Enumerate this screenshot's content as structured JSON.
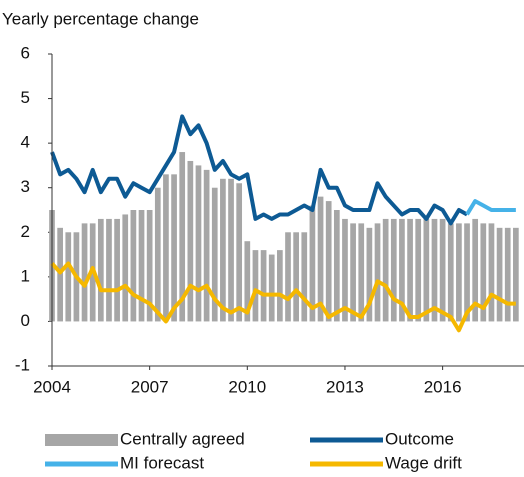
{
  "chart_data": {
    "type": "combo",
    "title": "Yearly percentage change",
    "x": [
      2004,
      2004.25,
      2004.5,
      2004.75,
      2005,
      2005.25,
      2005.5,
      2005.75,
      2006,
      2006.25,
      2006.5,
      2006.75,
      2007,
      2007.25,
      2007.5,
      2007.75,
      2008,
      2008.25,
      2008.5,
      2008.75,
      2009,
      2009.25,
      2009.5,
      2009.75,
      2010,
      2010.25,
      2010.5,
      2010.75,
      2011,
      2011.25,
      2011.5,
      2011.75,
      2012,
      2012.25,
      2012.5,
      2012.75,
      2013,
      2013.25,
      2013.5,
      2013.75,
      2014,
      2014.25,
      2014.5,
      2014.75,
      2015,
      2015.25,
      2015.5,
      2015.75,
      2016,
      2016.25,
      2016.5,
      2016.75,
      2017,
      2017.25,
      2017.5,
      2017.75,
      2018,
      2018.25
    ],
    "series": [
      {
        "name": "Centrally agreed",
        "type": "bar",
        "color": "#a6a6a6",
        "values": [
          2.5,
          2.1,
          2.0,
          2.0,
          2.2,
          2.2,
          2.3,
          2.3,
          2.3,
          2.4,
          2.5,
          2.5,
          2.5,
          3.0,
          3.3,
          3.3,
          3.8,
          3.6,
          3.5,
          3.4,
          3.0,
          3.2,
          3.2,
          3.1,
          1.8,
          1.6,
          1.6,
          1.5,
          1.6,
          2.0,
          2.0,
          2.0,
          2.6,
          2.8,
          2.7,
          2.5,
          2.3,
          2.2,
          2.2,
          2.1,
          2.2,
          2.3,
          2.3,
          2.3,
          2.3,
          2.3,
          2.3,
          2.3,
          2.3,
          2.2,
          2.2,
          2.2,
          2.3,
          2.2,
          2.2,
          2.1,
          2.1,
          2.1
        ]
      },
      {
        "name": "Outcome",
        "type": "line",
        "color": "#0d5a94",
        "values": [
          3.8,
          3.3,
          3.4,
          3.2,
          2.9,
          3.4,
          2.9,
          3.2,
          3.2,
          2.8,
          3.1,
          3.0,
          2.9,
          3.2,
          3.5,
          3.8,
          4.6,
          4.2,
          4.4,
          4.0,
          3.4,
          3.6,
          3.3,
          3.2,
          3.3,
          2.3,
          2.4,
          2.3,
          2.4,
          2.4,
          2.5,
          2.6,
          2.5,
          3.4,
          3.0,
          3.0,
          2.6,
          2.5,
          2.5,
          2.5,
          3.1,
          2.8,
          2.6,
          2.4,
          2.5,
          2.5,
          2.3,
          2.6,
          2.5,
          2.2,
          2.5,
          2.4,
          null,
          null,
          null,
          null,
          null,
          null
        ]
      },
      {
        "name": "MI forecast",
        "type": "line",
        "color": "#45b2e8",
        "values": [
          null,
          null,
          null,
          null,
          null,
          null,
          null,
          null,
          null,
          null,
          null,
          null,
          null,
          null,
          null,
          null,
          null,
          null,
          null,
          null,
          null,
          null,
          null,
          null,
          null,
          null,
          null,
          null,
          null,
          null,
          null,
          null,
          null,
          null,
          null,
          null,
          null,
          null,
          null,
          null,
          null,
          null,
          null,
          null,
          null,
          null,
          null,
          null,
          null,
          null,
          null,
          2.4,
          2.7,
          2.6,
          2.5,
          2.5,
          2.5,
          2.5
        ]
      },
      {
        "name": "Wage drift",
        "type": "line",
        "color": "#f5b800",
        "values": [
          1.3,
          1.1,
          1.3,
          1.0,
          0.8,
          1.2,
          0.7,
          0.7,
          0.7,
          0.8,
          0.6,
          0.5,
          0.4,
          0.2,
          0.0,
          0.3,
          0.5,
          0.8,
          0.7,
          0.8,
          0.5,
          0.3,
          0.2,
          0.3,
          0.2,
          0.7,
          0.6,
          0.6,
          0.6,
          0.5,
          0.7,
          0.5,
          0.3,
          0.4,
          0.1,
          0.2,
          0.3,
          0.2,
          0.1,
          0.4,
          0.9,
          0.8,
          0.5,
          0.4,
          0.1,
          0.1,
          0.2,
          0.3,
          0.2,
          0.1,
          -0.2,
          0.2,
          0.4,
          0.3,
          0.6,
          0.5,
          0.4,
          0.4
        ]
      }
    ],
    "xlim": [
      2004,
      2018.5
    ],
    "xticks": [
      2004,
      2007,
      2010,
      2013,
      2016
    ],
    "ylim": [
      -1,
      6
    ],
    "yticks": [
      -1,
      0,
      1,
      2,
      3,
      4,
      5,
      6
    ],
    "legend": "bottom"
  }
}
